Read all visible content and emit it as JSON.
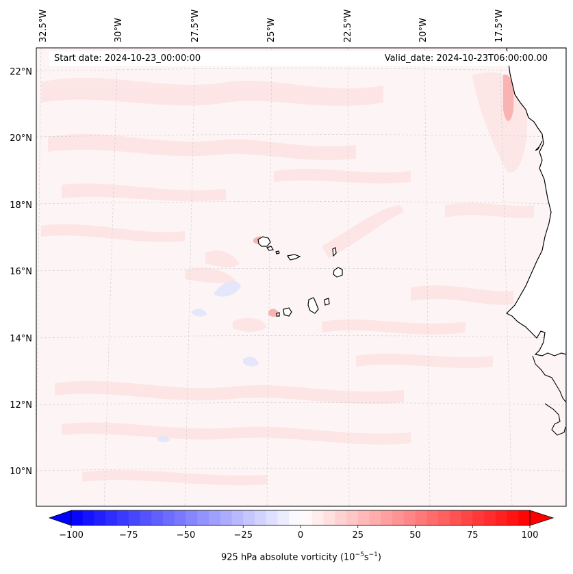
{
  "header": {
    "start_date": "Start date: 2024-10-23_00:00:00",
    "valid_date": "Valid_date: 2024-10-23T06:00:00.00"
  },
  "longitude_labels": [
    "32.5°W",
    "30°W",
    "27.5°W",
    "25°W",
    "22.5°W",
    "20°W",
    "17.5°W"
  ],
  "latitude_labels": [
    "22°N",
    "20°N",
    "18°N",
    "16°N",
    "14°N",
    "12°N",
    "10°N"
  ],
  "colorbar": {
    "ticks": [
      "−100",
      "−75",
      "−50",
      "−25",
      "0",
      "25",
      "50",
      "75",
      "100"
    ],
    "range": [
      -100,
      100
    ],
    "levels": 40,
    "label_text": "925 hPa absolute vorticity (10",
    "label_exp1": "−5",
    "label_mid": "s",
    "label_exp2": "−1",
    "label_end": ")",
    "colormap": "bwr"
  },
  "map": {
    "lon_range": [
      "33°W",
      "16°W"
    ],
    "lat_range": [
      "9°N",
      "23°N"
    ],
    "field_colors": {
      "land": "#ffffff",
      "ocean_base": "#fdf5f5",
      "coast": "#000000"
    }
  }
}
